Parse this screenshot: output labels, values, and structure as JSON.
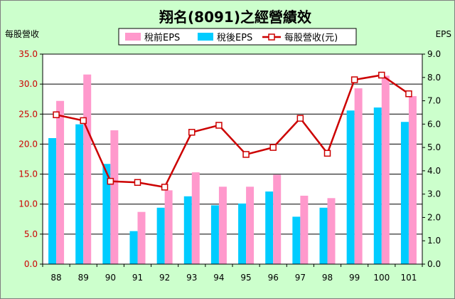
{
  "chart_data": {
    "type": "bar",
    "title": "翔名(8091)之經營績效",
    "ylabel": "每股營收",
    "y2label": "EPS",
    "categories": [
      "88",
      "89",
      "90",
      "91",
      "92",
      "93",
      "94",
      "95",
      "96",
      "97",
      "98",
      "99",
      "100",
      "101"
    ],
    "ylim": [
      0,
      35
    ],
    "y_ticks": [
      "0.0",
      "5.0",
      "10.0",
      "15.0",
      "20.0",
      "25.0",
      "30.0",
      "35.0"
    ],
    "y2lim": [
      0,
      9
    ],
    "y2_ticks": [
      "0.0",
      "1.0",
      "2.0",
      "3.0",
      "4.0",
      "5.0",
      "6.0",
      "7.0",
      "8.0",
      "9.0"
    ],
    "grid": true,
    "legend_position": "top",
    "series": [
      {
        "name": "稅前EPS",
        "kind": "bar",
        "axis": "left",
        "color": "#ff99cc",
        "values": [
          27.2,
          31.6,
          22.3,
          8.7,
          12.3,
          15.3,
          12.9,
          12.9,
          14.9,
          11.4,
          11.0,
          29.3,
          31.4,
          28.0
        ]
      },
      {
        "name": "稅後EPS",
        "kind": "bar",
        "axis": "left",
        "color": "#00ccff",
        "values": [
          21.0,
          23.3,
          16.7,
          5.5,
          9.4,
          11.3,
          9.8,
          10.1,
          12.1,
          7.9,
          9.4,
          25.6,
          26.1,
          23.7
        ]
      },
      {
        "name": "每股營收(元)",
        "kind": "line",
        "axis": "right",
        "color": "#cc0000",
        "marker_fill": "#ffffff",
        "values": [
          6.4,
          6.15,
          3.55,
          3.5,
          3.3,
          5.65,
          5.95,
          4.7,
          5.0,
          6.25,
          4.75,
          7.9,
          8.1,
          7.3
        ]
      }
    ]
  }
}
